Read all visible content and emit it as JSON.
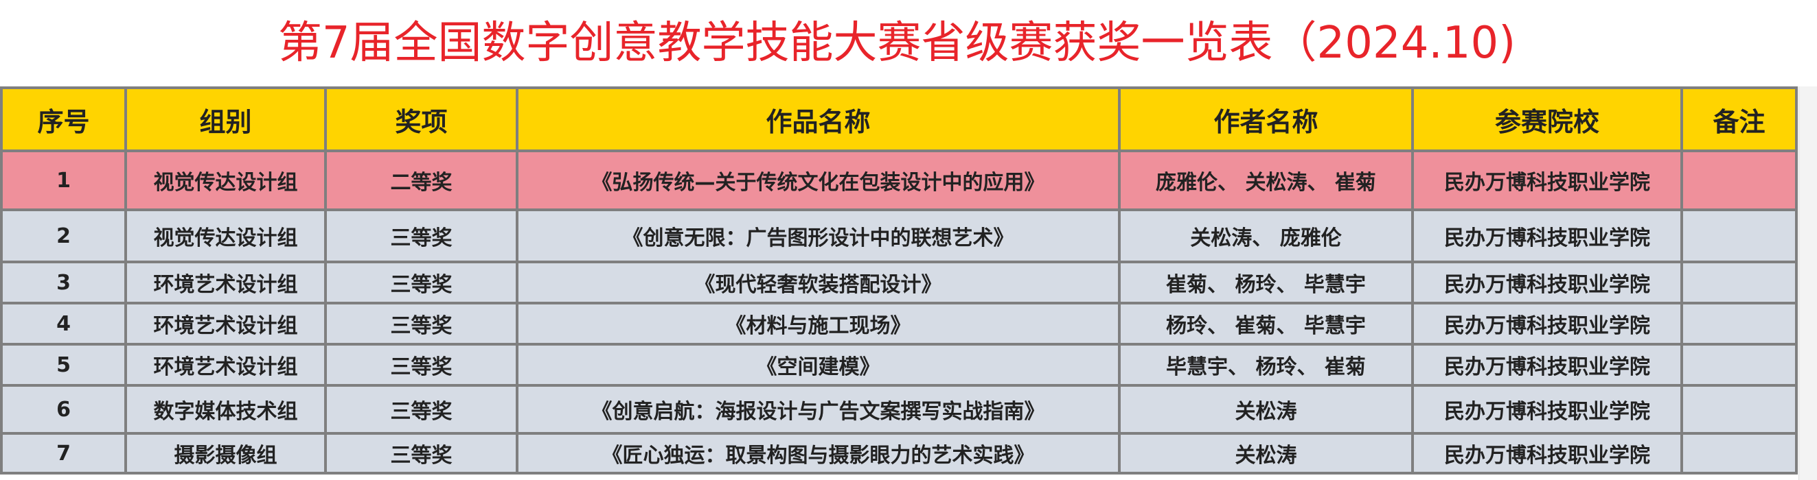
{
  "title": "第7届全国数字创意教学技能大赛省级赛获奖一览表（2024.10)",
  "colors": {
    "title": "#e8242a",
    "header_bg": "#ffd400",
    "highlight_row": "#ef909b",
    "row_bg": "#d6dce5"
  },
  "table": {
    "headers": [
      "序号",
      "组别",
      "奖项",
      "作品名称",
      "作者名称",
      "参赛院校",
      "备注"
    ],
    "rows": [
      [
        "1",
        "视觉传达设计组",
        "二等奖",
        "《弘扬传统—关于传统文化在包装设计中的应用》",
        "庞雅伦、 关松涛、 崔菊",
        "民办万博科技职业学院",
        ""
      ],
      [
        "2",
        "视觉传达设计组",
        "三等奖",
        "《创意无限：广告图形设计中的联想艺术》",
        "关松涛、 庞雅伦",
        "民办万博科技职业学院",
        ""
      ],
      [
        "3",
        "环境艺术设计组",
        "三等奖",
        "《现代轻奢软装搭配设计》",
        "崔菊、 杨玲、 毕慧宇",
        "民办万博科技职业学院",
        ""
      ],
      [
        "4",
        "环境艺术设计组",
        "三等奖",
        "《材料与施工现场》",
        "杨玲、 崔菊、 毕慧宇",
        "民办万博科技职业学院",
        ""
      ],
      [
        "5",
        "环境艺术设计组",
        "三等奖",
        "《空间建模》",
        "毕慧宇、 杨玲、 崔菊",
        "民办万博科技职业学院",
        ""
      ],
      [
        "6",
        "数字媒体技术组",
        "三等奖",
        "《创意启航：海报设计与广告文案撰写实战指南》",
        "关松涛",
        "民办万博科技职业学院",
        ""
      ],
      [
        "7",
        "摄影摄像组",
        "三等奖",
        "《匠心独运：取景构图与摄影眼力的艺术实践》",
        "关松涛",
        "民办万博科技职业学院",
        ""
      ]
    ]
  }
}
